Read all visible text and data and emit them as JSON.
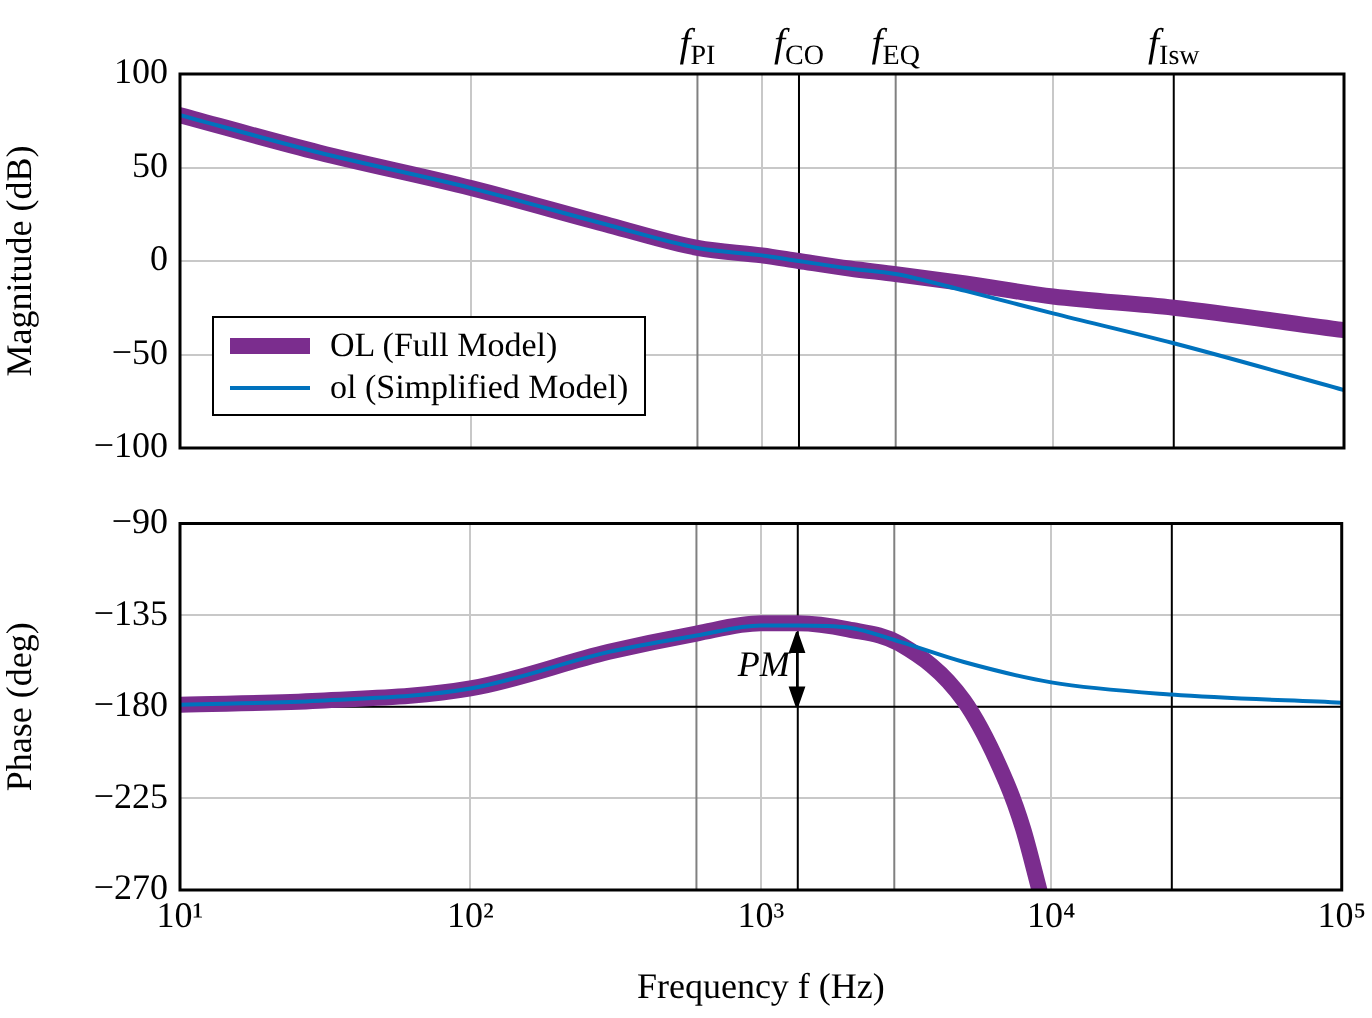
{
  "chart_data": [
    {
      "type": "line",
      "ylabel": "Magnitude (dB)",
      "log": "x",
      "grid": true,
      "legend": "bottom left",
      "tick_labels": "y",
      "xlim": [
        10,
        100000
      ],
      "ylim": [
        -100,
        100
      ],
      "xticks": [
        {
          "value": 10,
          "label": null
        },
        {
          "value": 100,
          "label": null
        },
        {
          "value": 1000,
          "label": null
        },
        {
          "value": 10000,
          "label": null
        },
        {
          "value": 100000,
          "label": null
        }
      ],
      "yticks": [
        -100,
        -50,
        0,
        50,
        100
      ],
      "series": [
        {
          "name": "OL (Full Model)",
          "color": "#7b2d8e",
          "x": [
            10,
            30,
            100,
            300,
            600,
            1000,
            1340,
            2000,
            2880,
            5000,
            10000,
            26000,
            100000
          ],
          "values": [
            78,
            58,
            39,
            19,
            7,
            3,
            0,
            -4,
            -7,
            -12,
            -19,
            -25,
            -37
          ]
        },
        {
          "name": "ol (Simplified Model)",
          "color": "#0072bd",
          "x": [
            10,
            30,
            100,
            300,
            600,
            1000,
            1340,
            2000,
            2880,
            5000,
            10000,
            26000,
            100000
          ],
          "values": [
            78,
            58,
            39,
            19,
            7,
            3,
            0,
            -4,
            -7,
            -16,
            -28,
            -44,
            -69
          ]
        }
      ],
      "ref_lines": [
        {
          "axis": "x",
          "value": 600,
          "label": "f$_{PI}$",
          "color": "#808080"
        },
        {
          "axis": "x",
          "value": 1340,
          "label": "f$_{CO}$",
          "color": "#000000"
        },
        {
          "axis": "x",
          "value": 2880,
          "label": "f$_{EQ}$",
          "color": "#808080"
        },
        {
          "axis": "x",
          "value": 26000,
          "label": "f$_{Isw}$",
          "color": "#000000"
        }
      ]
    },
    {
      "type": "line",
      "ylabel": "Phase (deg)",
      "xlabel": "Frequency f (Hz)",
      "log": "x",
      "grid": true,
      "xlim": [
        10,
        100000
      ],
      "ylim": [
        -270,
        -90
      ],
      "xticks": [
        {
          "value": 10,
          "label": "10¹"
        },
        {
          "value": 100,
          "label": "10²"
        },
        {
          "value": 1000,
          "label": "10³"
        },
        {
          "value": 10000,
          "label": "10⁴"
        },
        {
          "value": 100000,
          "label": "10⁵"
        }
      ],
      "yticks": [
        -270,
        -225,
        -180,
        -135,
        -90
      ],
      "series": [
        {
          "color": "#7b2d8e",
          "x": [
            10,
            30,
            100,
            300,
            600,
            1000,
            1340,
            2000,
            3000,
            5000,
            7000,
            8000,
            9100
          ],
          "values": [
            -179,
            -177,
            -171,
            -153,
            -144,
            -139,
            -139,
            -142,
            -149,
            -177,
            -217,
            -240,
            -270
          ]
        },
        {
          "color": "#0072bd",
          "x": [
            10,
            30,
            100,
            300,
            600,
            1000,
            1340,
            2000,
            3000,
            5000,
            10000,
            26000,
            100000
          ],
          "values": [
            -179,
            -177,
            -171,
            -153,
            -145,
            -140,
            -140,
            -141,
            -148,
            -158,
            -168,
            -174,
            -178
          ]
        }
      ],
      "ref_lines": [
        {
          "axis": "x",
          "value": 600,
          "color": "#808080"
        },
        {
          "axis": "x",
          "value": 1340,
          "color": "#000000"
        },
        {
          "axis": "x",
          "value": 2880,
          "color": "#808080"
        },
        {
          "axis": "x",
          "value": 26000,
          "color": "#000000"
        },
        {
          "axis": "y",
          "value": -180,
          "color": "#000000"
        }
      ],
      "annotations": [
        {
          "text": "PM",
          "x": 1340,
          "y": -160
        }
      ]
    }
  ]
}
